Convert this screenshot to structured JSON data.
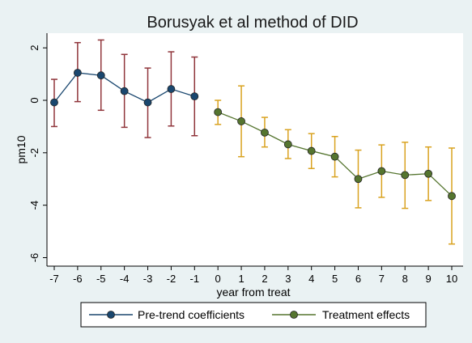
{
  "chart_data": {
    "type": "line",
    "title": "Borusyak et al method of DID",
    "xlabel": "year from treat",
    "ylabel": "pm10",
    "xlim": [
      -7,
      10
    ],
    "ylim": [
      -6,
      2.5
    ],
    "xticks": [
      -7,
      -6,
      -5,
      -4,
      -3,
      -2,
      -1,
      0,
      1,
      2,
      3,
      4,
      5,
      6,
      7,
      8,
      9,
      10
    ],
    "yticks": [
      -6,
      -4,
      -2,
      0,
      2
    ],
    "grid": false,
    "legend_position": "bottom",
    "series": [
      {
        "name": "Pre-trend coefficients",
        "line_color": "#1a476f",
        "ci_color": "#90353b",
        "points": [
          {
            "x": -7,
            "y": -0.08,
            "lo": -1.0,
            "hi": 0.8
          },
          {
            "x": -6,
            "y": 1.05,
            "lo": -0.05,
            "hi": 2.2
          },
          {
            "x": -5,
            "y": 0.95,
            "lo": -0.38,
            "hi": 2.3
          },
          {
            "x": -4,
            "y": 0.35,
            "lo": -1.03,
            "hi": 1.75
          },
          {
            "x": -3,
            "y": -0.08,
            "lo": -1.42,
            "hi": 1.23
          },
          {
            "x": -2,
            "y": 0.43,
            "lo": -0.98,
            "hi": 1.85
          },
          {
            "x": -1,
            "y": 0.15,
            "lo": -1.35,
            "hi": 1.65
          }
        ]
      },
      {
        "name": "Treatment effects",
        "line_color": "#55752f",
        "ci_color": "#d9a21f",
        "points": [
          {
            "x": 0,
            "y": -0.45,
            "lo": -0.92,
            "hi": 0.0
          },
          {
            "x": 1,
            "y": -0.8,
            "lo": -2.15,
            "hi": 0.55
          },
          {
            "x": 2,
            "y": -1.23,
            "lo": -1.78,
            "hi": -0.65
          },
          {
            "x": 3,
            "y": -1.68,
            "lo": -2.22,
            "hi": -1.12
          },
          {
            "x": 4,
            "y": -1.93,
            "lo": -2.6,
            "hi": -1.27
          },
          {
            "x": 5,
            "y": -2.15,
            "lo": -2.92,
            "hi": -1.38
          },
          {
            "x": 6,
            "y": -3.0,
            "lo": -4.1,
            "hi": -1.9
          },
          {
            "x": 7,
            "y": -2.7,
            "lo": -3.7,
            "hi": -1.7
          },
          {
            "x": 8,
            "y": -2.85,
            "lo": -4.12,
            "hi": -1.6
          },
          {
            "x": 9,
            "y": -2.8,
            "lo": -3.82,
            "hi": -1.78
          },
          {
            "x": 10,
            "y": -3.65,
            "lo": -5.48,
            "hi": -1.82
          }
        ]
      }
    ],
    "colors": {
      "background": "#eaf2f3",
      "plot_background": "#ffffff",
      "marker_outline": "#222222"
    }
  }
}
